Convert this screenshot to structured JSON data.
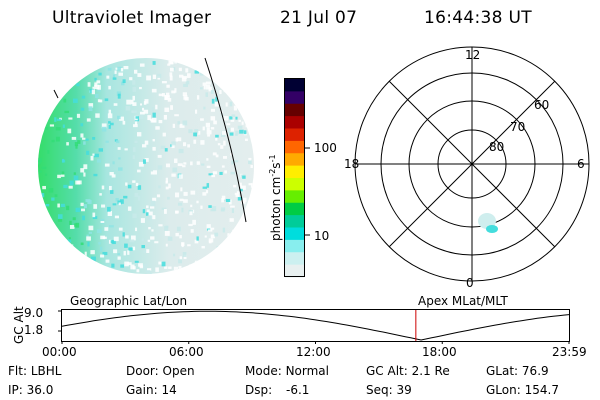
{
  "header": {
    "title": "Ultraviolet Imager",
    "date": "21 Jul 07",
    "time": "16:44:38 UT"
  },
  "colorbar": {
    "label": "photon cm",
    "label_exp1": "-2",
    "label_mid": "s",
    "label_exp2": "-1",
    "ticks": [
      "100",
      "10"
    ],
    "colors": [
      "#000033",
      "#330066",
      "#660000",
      "#aa0000",
      "#dd2200",
      "#ff6600",
      "#ffaa00",
      "#ffee00",
      "#ccff00",
      "#66ee00",
      "#00cc44",
      "#00cc99",
      "#00dddd",
      "#88eeee",
      "#ccf0f0",
      "#e8f0f0"
    ]
  },
  "polar": {
    "mlt_labels": {
      "top": "12",
      "left": "18",
      "right": "6",
      "bottom": "0"
    },
    "lat_labels": [
      "60",
      "70",
      "80"
    ]
  },
  "timeline": {
    "left_label": "Geographic Lat/Lon",
    "right_label": "Apex MLat/MLT",
    "axis_title": "GC Alt",
    "y_ticks": [
      "9.0",
      "1.8"
    ],
    "x_ticks": [
      "00:00",
      "06:00",
      "12:00",
      "18:00",
      "23:59"
    ],
    "current_time_hours": 16.75
  },
  "info_rows": [
    [
      {
        "label": "Flt:",
        "value": "LBHL"
      },
      {
        "label": "Door:",
        "value": "Open"
      },
      {
        "label": "Mode:",
        "value": "Normal"
      },
      {
        "label": "GC Alt:",
        "value": "2.1 Re"
      },
      {
        "label": "GLat:",
        "value": "76.9"
      }
    ],
    [
      {
        "label": "IP:",
        "value": "36.0"
      },
      {
        "label": "Gain:",
        "value": "14"
      },
      {
        "label": "Dsp:",
        "value": "-6.1"
      },
      {
        "label": "Seq:",
        "value": "39"
      },
      {
        "label": "GLon:",
        "value": "154.7"
      }
    ]
  ],
  "colors": {
    "marker": "#cc0000",
    "accent_green": "#33dd77",
    "accent_cyan": "#44dddd"
  }
}
